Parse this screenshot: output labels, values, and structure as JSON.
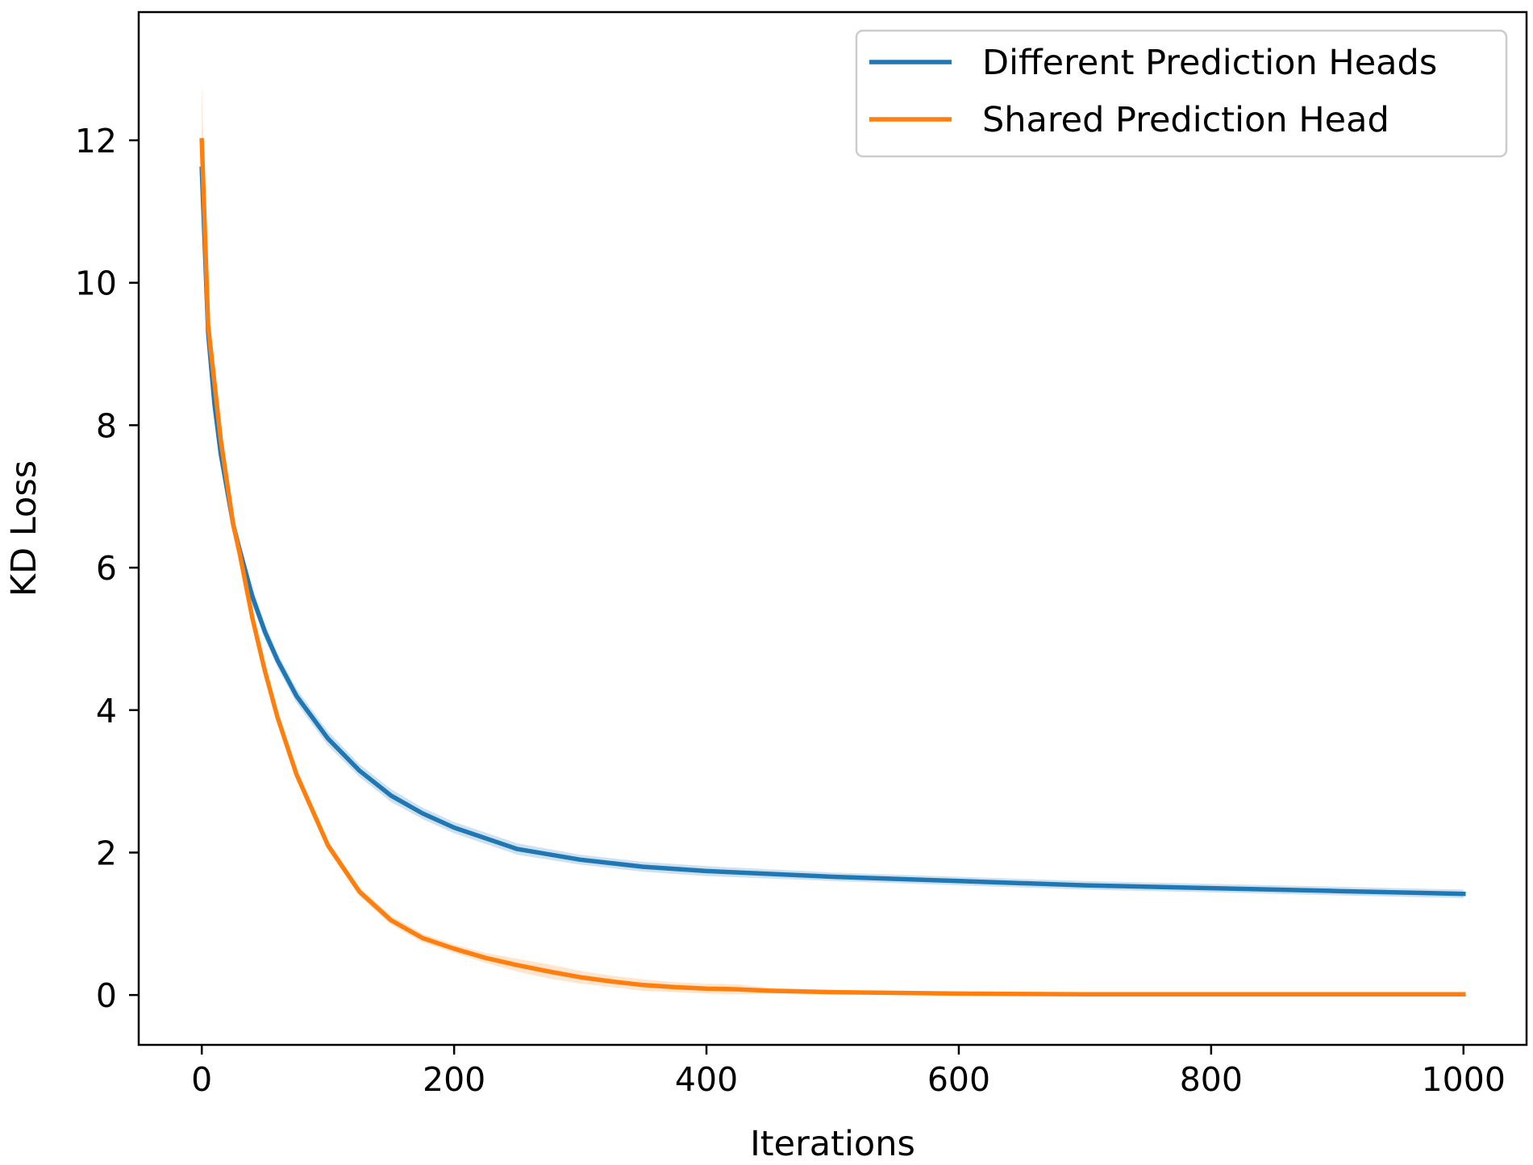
{
  "chart_data": {
    "type": "line",
    "title": "",
    "xlabel": "Iterations",
    "ylabel": "KD Loss",
    "xlim": [
      -50,
      1050
    ],
    "ylim": [
      -0.7,
      13.8
    ],
    "x_ticks": [
      0,
      200,
      400,
      600,
      800,
      1000
    ],
    "y_ticks": [
      0,
      2,
      4,
      6,
      8,
      10,
      12
    ],
    "grid": false,
    "legend_position": "top-right",
    "series": [
      {
        "name": "Different Prediction Heads",
        "color": "#1f77b4",
        "band_color": "#aecde6",
        "x": [
          0,
          5,
          10,
          15,
          20,
          25,
          30,
          40,
          50,
          60,
          75,
          100,
          125,
          150,
          175,
          200,
          250,
          300,
          350,
          400,
          500,
          600,
          700,
          800,
          900,
          1000
        ],
        "y": [
          11.6,
          9.3,
          8.3,
          7.6,
          7.1,
          6.6,
          6.25,
          5.6,
          5.1,
          4.7,
          4.2,
          3.6,
          3.15,
          2.8,
          2.55,
          2.35,
          2.05,
          1.9,
          1.8,
          1.74,
          1.66,
          1.6,
          1.54,
          1.5,
          1.46,
          1.42
        ],
        "band": [
          0.2,
          0.2,
          0.18,
          0.16,
          0.15,
          0.14,
          0.13,
          0.12,
          0.11,
          0.1,
          0.1,
          0.1,
          0.09,
          0.09,
          0.08,
          0.08,
          0.08,
          0.07,
          0.07,
          0.07,
          0.06,
          0.06,
          0.06,
          0.06,
          0.06,
          0.06
        ]
      },
      {
        "name": "Shared Prediction Head",
        "color": "#ff7f0e",
        "band_color": "#ffd2ad",
        "x": [
          0,
          5,
          10,
          15,
          20,
          25,
          30,
          40,
          50,
          60,
          75,
          100,
          125,
          150,
          175,
          200,
          225,
          250,
          275,
          300,
          325,
          350,
          375,
          400,
          425,
          450,
          500,
          550,
          600,
          700,
          800,
          900,
          1000
        ],
        "y": [
          12.0,
          9.4,
          8.6,
          7.8,
          7.2,
          6.6,
          6.2,
          5.3,
          4.55,
          3.9,
          3.1,
          2.1,
          1.45,
          1.05,
          0.8,
          0.65,
          0.52,
          0.42,
          0.33,
          0.25,
          0.19,
          0.14,
          0.11,
          0.09,
          0.08,
          0.06,
          0.04,
          0.03,
          0.02,
          0.01,
          0.01,
          0.01,
          0.01
        ],
        "band": [
          0.8,
          0.3,
          0.2,
          0.15,
          0.12,
          0.12,
          0.12,
          0.1,
          0.1,
          0.1,
          0.08,
          0.07,
          0.06,
          0.06,
          0.06,
          0.06,
          0.07,
          0.09,
          0.1,
          0.09,
          0.08,
          0.08,
          0.07,
          0.07,
          0.07,
          0.04,
          0.03,
          0.02,
          0.02,
          0.01,
          0.01,
          0.01,
          0.01
        ]
      }
    ]
  }
}
